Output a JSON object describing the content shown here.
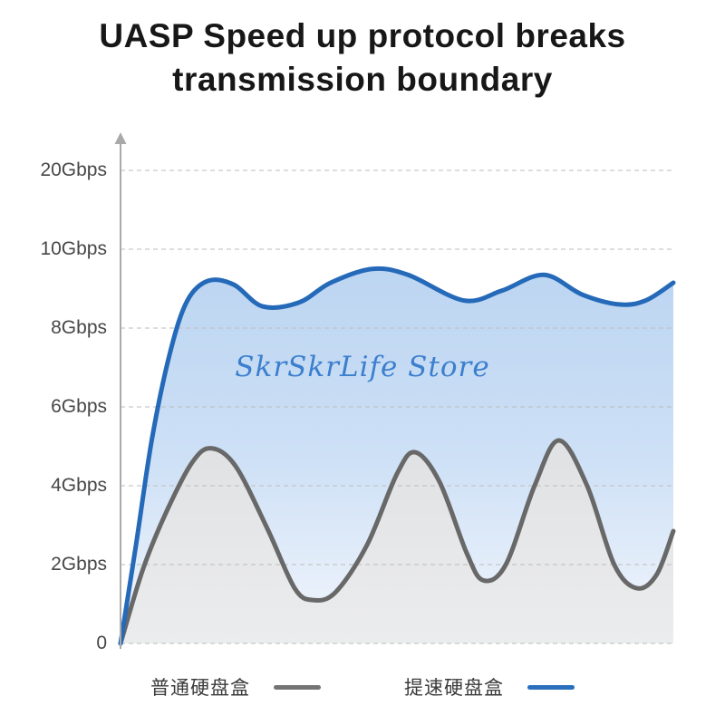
{
  "title": {
    "line1": "UASP Speed up protocol breaks",
    "line2": "transmission boundary"
  },
  "watermark": "SkrSkrLife Store",
  "legend": [
    {
      "id": "ordinary",
      "label": "普通硬盘盒",
      "color": "#747474"
    },
    {
      "id": "uasp",
      "label": "提速硬盘盒",
      "color": "#2a6fbd"
    }
  ],
  "colors": {
    "title": "#171717",
    "axis": "#a9a9a9",
    "gridline": "#bfbfbf",
    "tick_label": "#474747",
    "watermark": "#3b7fce",
    "background": "#ffffff"
  },
  "chart_data": {
    "type": "area",
    "title": "UASP Speed up protocol breaks transmission boundary",
    "xlabel": "",
    "ylabel": "Gbps",
    "legend_position": "bottom",
    "grid": "dashed horizontal",
    "y_axis": {
      "unit": "Gbps",
      "ticks": [
        {
          "label": "0",
          "value": 0
        },
        {
          "label": "2Gbps",
          "value": 2
        },
        {
          "label": "4Gbps",
          "value": 4
        },
        {
          "label": "6Gbps",
          "value": 6
        },
        {
          "label": "8Gbps",
          "value": 8
        },
        {
          "label": "10Gbps",
          "value": 10
        },
        {
          "label": "20Gbps",
          "value": 20
        }
      ],
      "note": "ticks are evenly spaced on screen, so the 10-20 segment is compressed",
      "arrow_top": true
    },
    "x_axis": {
      "ticks": [],
      "label": ""
    },
    "series": [
      {
        "id": "ordinary",
        "name": "普通硬盘盒",
        "color": "#686868",
        "stroke_width": 5,
        "fill_stops": [
          "#dfe1e3",
          "#e6e7e9",
          "#ebeced"
        ],
        "points": [
          [
            0.0,
            0.0
          ],
          [
            0.041,
            1.9
          ],
          [
            0.085,
            3.4
          ],
          [
            0.13,
            4.6
          ],
          [
            0.164,
            4.95
          ],
          [
            0.208,
            4.5
          ],
          [
            0.266,
            2.9
          ],
          [
            0.315,
            1.4
          ],
          [
            0.348,
            1.1
          ],
          [
            0.389,
            1.3
          ],
          [
            0.446,
            2.5
          ],
          [
            0.5,
            4.3
          ],
          [
            0.533,
            4.85
          ],
          [
            0.577,
            4.1
          ],
          [
            0.626,
            2.3
          ],
          [
            0.656,
            1.6
          ],
          [
            0.697,
            2.0
          ],
          [
            0.749,
            4.0
          ],
          [
            0.793,
            5.15
          ],
          [
            0.844,
            4.0
          ],
          [
            0.893,
            2.0
          ],
          [
            0.934,
            1.4
          ],
          [
            0.97,
            1.75
          ],
          [
            1.0,
            2.85
          ]
        ]
      },
      {
        "id": "uasp",
        "name": "提速硬盘盒",
        "color": "#2569b9",
        "stroke_width": 5,
        "fill_stops": [
          "#bcd5f1",
          "#cde0f6",
          "#f2f6fc"
        ],
        "points": [
          [
            0.0,
            0.0
          ],
          [
            0.028,
            2.5
          ],
          [
            0.057,
            5.2
          ],
          [
            0.09,
            7.4
          ],
          [
            0.121,
            8.7
          ],
          [
            0.159,
            9.2
          ],
          [
            0.205,
            9.1
          ],
          [
            0.257,
            8.55
          ],
          [
            0.323,
            8.65
          ],
          [
            0.38,
            9.15
          ],
          [
            0.455,
            9.5
          ],
          [
            0.52,
            9.35
          ],
          [
            0.621,
            8.7
          ],
          [
            0.69,
            8.95
          ],
          [
            0.766,
            9.35
          ],
          [
            0.835,
            8.85
          ],
          [
            0.902,
            8.6
          ],
          [
            0.95,
            8.7
          ],
          [
            1.0,
            9.15
          ]
        ]
      }
    ]
  }
}
